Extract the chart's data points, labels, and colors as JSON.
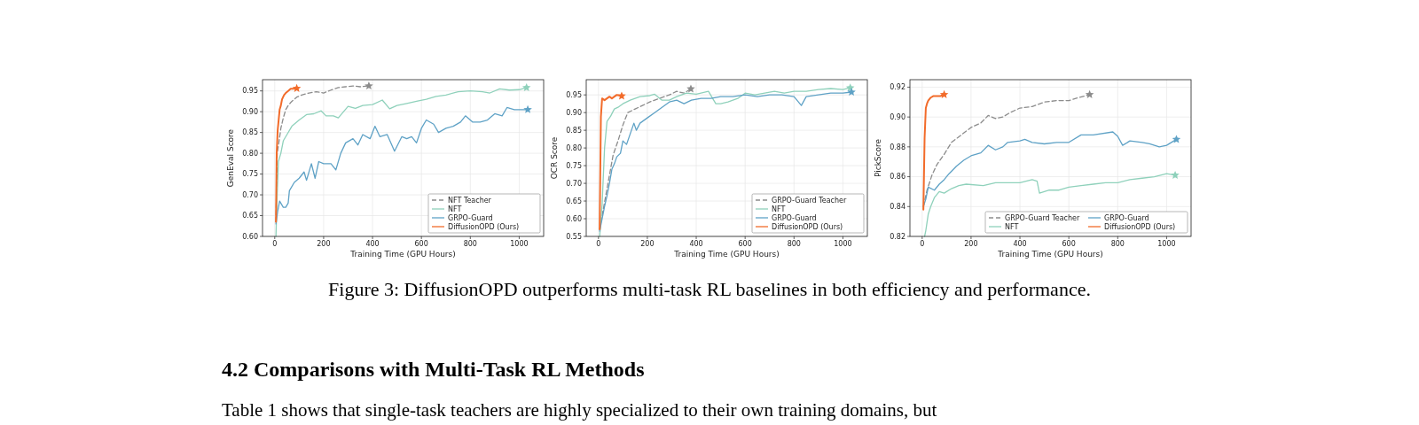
{
  "chart_data": [
    {
      "type": "line",
      "xlabel": "Training Time (GPU Hours)",
      "ylabel": "GenEval Score",
      "xlim": [
        -50,
        1100
      ],
      "xticks": [
        0,
        200,
        400,
        600,
        800,
        1000
      ],
      "ylim": [
        0.6,
        0.977
      ],
      "yticks": [
        {
          "value": 0.6,
          "label": "0.60"
        },
        {
          "value": 0.65,
          "label": "0.65"
        },
        {
          "value": 0.7,
          "label": "0.70"
        },
        {
          "value": 0.75,
          "label": "0.75"
        },
        {
          "value": 0.8,
          "label": "0.80"
        },
        {
          "value": 0.85,
          "label": "0.85"
        },
        {
          "value": 0.9,
          "label": "0.90"
        },
        {
          "value": 0.95,
          "label": "0.95"
        }
      ],
      "grid": true,
      "legend": "bottom right",
      "annotations": [
        "Figure 3: DiffusionOPD outperforms multi-task RL baselines in both efficiency and performance.",
        "4.2 Comparisons with Multi-Task RL Methods",
        "Table 1 shows that single-task teachers are highly specialized to their own training domains, but"
      ],
      "series": [
        {
          "name": "NFT Teacher",
          "color": "#8c8c8c",
          "line_style": "dashed",
          "x": [
            5,
            10,
            18,
            25,
            35,
            45,
            55,
            70,
            90,
            110,
            140,
            170,
            200,
            230,
            260,
            290,
            320,
            350,
            385
          ],
          "values": [
            0.635,
            0.8,
            0.83,
            0.86,
            0.885,
            0.905,
            0.915,
            0.925,
            0.935,
            0.94,
            0.945,
            0.948,
            0.945,
            0.952,
            0.958,
            0.96,
            0.962,
            0.96,
            0.962
          ]
        },
        {
          "name": "NFT",
          "color": "#8fd1bb",
          "line_style": "solid",
          "x": [
            5,
            10,
            15,
            25,
            35,
            50,
            70,
            100,
            130,
            160,
            190,
            210,
            240,
            260,
            300,
            330,
            360,
            400,
            440,
            470,
            500,
            540,
            580,
            620,
            660,
            700,
            750,
            800,
            850,
            880,
            920,
            960,
            1000,
            1030
          ],
          "values": [
            0.6,
            0.7,
            0.78,
            0.8,
            0.83,
            0.845,
            0.865,
            0.88,
            0.893,
            0.895,
            0.902,
            0.89,
            0.89,
            0.885,
            0.913,
            0.908,
            0.915,
            0.917,
            0.928,
            0.907,
            0.915,
            0.92,
            0.925,
            0.93,
            0.937,
            0.94,
            0.948,
            0.95,
            0.948,
            0.945,
            0.955,
            0.952,
            0.953,
            0.958
          ]
        },
        {
          "name": "GRPO-Guard",
          "color": "#5fa2c6",
          "line_style": "solid",
          "x": [
            5,
            12,
            20,
            35,
            45,
            55,
            60,
            80,
            100,
            120,
            130,
            150,
            165,
            180,
            200,
            230,
            250,
            270,
            290,
            320,
            340,
            360,
            390,
            410,
            430,
            460,
            490,
            520,
            540,
            560,
            580,
            600,
            620,
            650,
            670,
            700,
            730,
            760,
            780,
            810,
            840,
            870,
            900,
            930,
            950,
            980,
            1010,
            1035
          ],
          "values": [
            0.63,
            0.66,
            0.685,
            0.67,
            0.67,
            0.68,
            0.71,
            0.73,
            0.74,
            0.755,
            0.735,
            0.775,
            0.74,
            0.78,
            0.775,
            0.775,
            0.76,
            0.8,
            0.825,
            0.835,
            0.82,
            0.845,
            0.835,
            0.865,
            0.84,
            0.845,
            0.805,
            0.84,
            0.835,
            0.84,
            0.825,
            0.86,
            0.88,
            0.87,
            0.85,
            0.86,
            0.865,
            0.875,
            0.89,
            0.875,
            0.875,
            0.88,
            0.895,
            0.89,
            0.91,
            0.905,
            0.905,
            0.905
          ]
        },
        {
          "name": "DiffusionOPD (Ours)",
          "color": "#f26b2a",
          "line_style": "solid",
          "x": [
            5,
            8,
            12,
            16,
            20,
            25,
            30,
            38,
            45,
            55,
            65,
            75,
            90
          ],
          "values": [
            0.635,
            0.8,
            0.855,
            0.88,
            0.905,
            0.915,
            0.93,
            0.94,
            0.945,
            0.95,
            0.955,
            0.955,
            0.956
          ]
        }
      ]
    },
    {
      "type": "line",
      "xlabel": "Training Time (GPU Hours)",
      "ylabel": "OCR Score",
      "xlim": [
        -50,
        1100
      ],
      "xticks": [
        0,
        200,
        400,
        600,
        800,
        1000
      ],
      "ylim": [
        0.55,
        0.993
      ],
      "yticks": [
        {
          "value": 0.55,
          "label": "0.55"
        },
        {
          "value": 0.6,
          "label": "0.60"
        },
        {
          "value": 0.65,
          "label": "0.65"
        },
        {
          "value": 0.7,
          "label": "0.70"
        },
        {
          "value": 0.75,
          "label": "0.75"
        },
        {
          "value": 0.8,
          "label": "0.80"
        },
        {
          "value": 0.85,
          "label": "0.85"
        },
        {
          "value": 0.9,
          "label": "0.90"
        },
        {
          "value": 0.95,
          "label": "0.95"
        }
      ],
      "grid": true,
      "legend": "bottom right",
      "series": [
        {
          "name": "GRPO-Guard Teacher",
          "color": "#8c8c8c",
          "line_style": "dashed",
          "x": [
            5,
            60,
            80,
            100,
            120,
            150,
            180,
            210,
            250,
            290,
            320,
            350,
            378
          ],
          "values": [
            0.57,
            0.78,
            0.82,
            0.865,
            0.9,
            0.91,
            0.92,
            0.93,
            0.94,
            0.95,
            0.96,
            0.955,
            0.967
          ]
        },
        {
          "name": "NFT",
          "color": "#8fd1bb",
          "line_style": "solid",
          "x": [
            5,
            15,
            25,
            35,
            50,
            65,
            80,
            100,
            130,
            170,
            210,
            230,
            260,
            290,
            320,
            360,
            400,
            450,
            480,
            500,
            530,
            570,
            600,
            640,
            680,
            720,
            760,
            800,
            850,
            900,
            950,
            1000,
            1030
          ],
          "values": [
            0.55,
            0.64,
            0.8,
            0.875,
            0.89,
            0.91,
            0.915,
            0.925,
            0.935,
            0.945,
            0.948,
            0.952,
            0.935,
            0.935,
            0.945,
            0.955,
            0.952,
            0.96,
            0.925,
            0.925,
            0.93,
            0.94,
            0.955,
            0.95,
            0.955,
            0.96,
            0.955,
            0.96,
            0.96,
            0.965,
            0.968,
            0.965,
            0.97
          ]
        },
        {
          "name": "GRPO-Guard",
          "color": "#5fa2c6",
          "line_style": "solid",
          "x": [
            5,
            15,
            25,
            35,
            45,
            55,
            65,
            75,
            90,
            100,
            115,
            130,
            145,
            155,
            170,
            200,
            230,
            260,
            290,
            320,
            350,
            380,
            420,
            460,
            500,
            550,
            600,
            650,
            700,
            750,
            800,
            830,
            850,
            900,
            950,
            1000,
            1035
          ],
          "values": [
            0.565,
            0.6,
            0.635,
            0.665,
            0.7,
            0.74,
            0.755,
            0.775,
            0.785,
            0.82,
            0.81,
            0.84,
            0.87,
            0.85,
            0.87,
            0.885,
            0.9,
            0.915,
            0.93,
            0.935,
            0.925,
            0.935,
            0.94,
            0.94,
            0.945,
            0.945,
            0.95,
            0.945,
            0.95,
            0.95,
            0.945,
            0.92,
            0.945,
            0.95,
            0.955,
            0.955,
            0.958
          ]
        },
        {
          "name": "DiffusionOPD (Ours)",
          "color": "#f26b2a",
          "line_style": "solid",
          "x": [
            5,
            10,
            15,
            25,
            35,
            45,
            55,
            65,
            75,
            95
          ],
          "values": [
            0.57,
            0.888,
            0.94,
            0.935,
            0.94,
            0.945,
            0.94,
            0.945,
            0.95,
            0.947
          ]
        }
      ]
    },
    {
      "type": "line",
      "xlabel": "Training Time (GPU Hours)",
      "ylabel": "PickScore",
      "xlim": [
        -50,
        1100
      ],
      "xticks": [
        0,
        200,
        400,
        600,
        800,
        1000
      ],
      "ylim": [
        0.82,
        0.925
      ],
      "yticks": [
        {
          "value": 0.82,
          "label": "0.82"
        },
        {
          "value": 0.84,
          "label": "0.84"
        },
        {
          "value": 0.86,
          "label": "0.86"
        },
        {
          "value": 0.88,
          "label": "0.88"
        },
        {
          "value": 0.9,
          "label": "0.90"
        },
        {
          "value": 0.92,
          "label": "0.92"
        }
      ],
      "grid": true,
      "legend": "bottom right",
      "series": [
        {
          "name": "GRPO-Guard Teacher",
          "color": "#8c8c8c",
          "line_style": "dashed",
          "x": [
            5,
            20,
            40,
            60,
            90,
            120,
            160,
            200,
            240,
            270,
            300,
            330,
            360,
            400,
            450,
            500,
            550,
            600,
            640,
            685
          ],
          "values": [
            0.84,
            0.851,
            0.861,
            0.868,
            0.875,
            0.883,
            0.888,
            0.893,
            0.896,
            0.901,
            0.899,
            0.9,
            0.903,
            0.906,
            0.907,
            0.91,
            0.911,
            0.911,
            0.913,
            0.915
          ]
        },
        {
          "name": "NFT",
          "color": "#8fd1bb",
          "line_style": "solid",
          "x": [
            10,
            15,
            25,
            35,
            50,
            70,
            90,
            120,
            150,
            180,
            250,
            300,
            350,
            400,
            450,
            470,
            480,
            520,
            560,
            600,
            650,
            700,
            750,
            800,
            850,
            900,
            950,
            1000,
            1035
          ],
          "values": [
            0.82,
            0.824,
            0.835,
            0.84,
            0.846,
            0.85,
            0.849,
            0.852,
            0.854,
            0.855,
            0.854,
            0.856,
            0.856,
            0.856,
            0.858,
            0.857,
            0.849,
            0.851,
            0.851,
            0.853,
            0.854,
            0.855,
            0.856,
            0.856,
            0.858,
            0.859,
            0.86,
            0.862,
            0.861
          ]
        },
        {
          "name": "GRPO-Guard",
          "color": "#5fa2c6",
          "line_style": "solid",
          "x": [
            5,
            15,
            25,
            50,
            70,
            90,
            110,
            140,
            170,
            200,
            240,
            270,
            300,
            330,
            350,
            400,
            420,
            450,
            500,
            550,
            600,
            650,
            700,
            780,
            800,
            820,
            850,
            900,
            930,
            970,
            1000,
            1040
          ],
          "values": [
            0.84,
            0.845,
            0.853,
            0.851,
            0.855,
            0.858,
            0.862,
            0.867,
            0.871,
            0.874,
            0.876,
            0.881,
            0.878,
            0.88,
            0.883,
            0.884,
            0.885,
            0.883,
            0.882,
            0.883,
            0.883,
            0.888,
            0.888,
            0.89,
            0.887,
            0.881,
            0.884,
            0.883,
            0.882,
            0.88,
            0.881,
            0.885
          ]
        },
        {
          "name": "DiffusionOPD (Ours)",
          "color": "#f26b2a",
          "line_style": "solid",
          "x": [
            5,
            10,
            15,
            20,
            25,
            35,
            45,
            60,
            75,
            90
          ],
          "values": [
            0.838,
            0.886,
            0.906,
            0.909,
            0.911,
            0.913,
            0.914,
            0.914,
            0.914,
            0.915
          ]
        }
      ]
    }
  ]
}
